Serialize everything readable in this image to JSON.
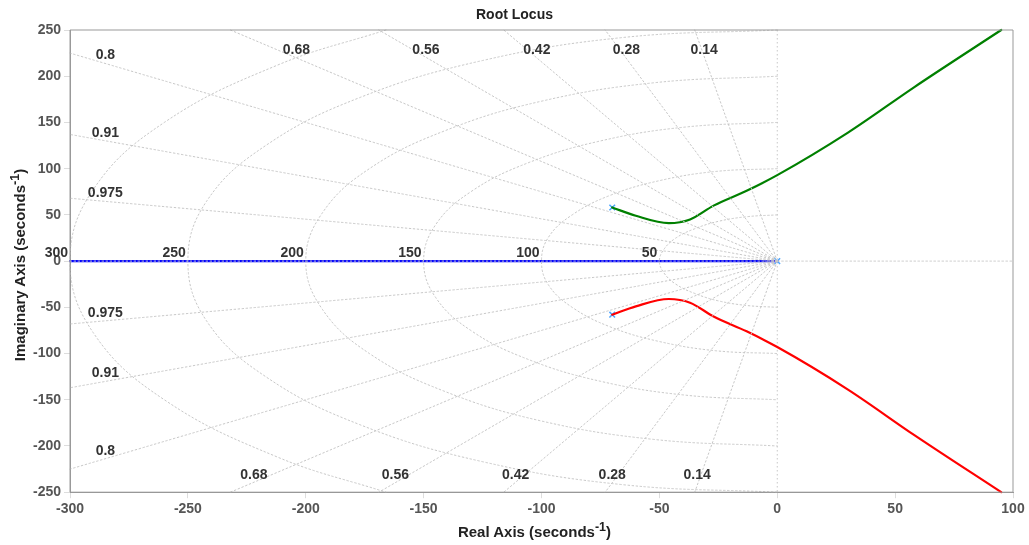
{
  "chart_data": {
    "type": "line",
    "title": "Root Locus",
    "xlabel": "Real Axis (seconds$^{-1}$)",
    "ylabel": "Imaginary Axis (seconds$^{-1}$)",
    "xlim": [
      -300,
      100
    ],
    "xticks": [
      -300,
      -250,
      -200,
      -150,
      -100,
      -50,
      0,
      50,
      100
    ],
    "ylim": [
      -250,
      250
    ],
    "yticks": [
      -250,
      -200,
      -150,
      -100,
      -50,
      0,
      50,
      100,
      150,
      200,
      250
    ],
    "marker": "none",
    "line_style": "solid",
    "ref_lines": [
      {
        "axis": "x",
        "value": 0,
        "color": "#c8c8c8",
        "line_style": "dotted"
      }
    ],
    "series": [
      {
        "color": "#c8c8c8",
        "line_style": "dotted",
        "x": [
          -300,
          100
        ],
        "values": [
          0,
          0
        ]
      },
      {
        "color": "#c8c8c8",
        "line_style": "dotted",
        "x": [
          0,
          -35
        ],
        "values": [
          0,
          250
        ]
      },
      {
        "color": "#c8c8c8",
        "line_style": "dotted",
        "x": [
          0,
          -73
        ],
        "values": [
          0,
          250
        ]
      },
      {
        "color": "#c8c8c8",
        "line_style": "dotted",
        "x": [
          0,
          -116
        ],
        "values": [
          0,
          250
        ]
      },
      {
        "color": "#c8c8c8",
        "line_style": "dotted",
        "x": [
          0,
          -169
        ],
        "values": [
          0,
          250
        ]
      },
      {
        "color": "#c8c8c8",
        "line_style": "dotted",
        "x": [
          0,
          -232
        ],
        "values": [
          0,
          250
        ]
      },
      {
        "color": "#c8c8c8",
        "line_style": "dotted",
        "x": [
          0,
          -300
        ],
        "values": [
          0,
          225
        ]
      },
      {
        "color": "#c8c8c8",
        "line_style": "dotted",
        "x": [
          0,
          -300
        ],
        "values": [
          0,
          137
        ]
      },
      {
        "color": "#c8c8c8",
        "line_style": "dotted",
        "x": [
          0,
          -300
        ],
        "values": [
          0,
          68
        ]
      },
      {
        "color": "#c8c8c8",
        "line_style": "dotted",
        "x": [
          0,
          -35
        ],
        "values": [
          0,
          -250
        ]
      },
      {
        "color": "#c8c8c8",
        "line_style": "dotted",
        "x": [
          0,
          -73
        ],
        "values": [
          0,
          -250
        ]
      },
      {
        "color": "#c8c8c8",
        "line_style": "dotted",
        "x": [
          0,
          -116
        ],
        "values": [
          0,
          -250
        ]
      },
      {
        "color": "#c8c8c8",
        "line_style": "dotted",
        "x": [
          0,
          -169
        ],
        "values": [
          0,
          -250
        ]
      },
      {
        "color": "#c8c8c8",
        "line_style": "dotted",
        "x": [
          0,
          -232
        ],
        "values": [
          0,
          -250
        ]
      },
      {
        "color": "#c8c8c8",
        "line_style": "dotted",
        "x": [
          0,
          -300
        ],
        "values": [
          0,
          -225
        ]
      },
      {
        "color": "#c8c8c8",
        "line_style": "dotted",
        "x": [
          0,
          -300
        ],
        "values": [
          0,
          -137
        ]
      },
      {
        "color": "#c8c8c8",
        "line_style": "dotted",
        "x": [
          0,
          -300
        ],
        "values": [
          0,
          -68
        ]
      },
      {
        "color": "#c8c8c8",
        "line_style": "dotted",
        "x": [
          0,
          -13,
          -25,
          -35,
          -43,
          -48,
          -50,
          -48,
          -43,
          -35,
          -25,
          -13,
          0
        ],
        "values": [
          50,
          48,
          43,
          35,
          25,
          13,
          0,
          -13,
          -25,
          -35,
          -43,
          -48,
          -50
        ]
      },
      {
        "color": "#c8c8c8",
        "line_style": "dotted",
        "x": [
          0,
          -26,
          -50,
          -71,
          -87,
          -97,
          -100,
          -97,
          -87,
          -71,
          -50,
          -26,
          0
        ],
        "values": [
          100,
          97,
          87,
          71,
          50,
          26,
          0,
          -26,
          -50,
          -71,
          -87,
          -97,
          -100
        ]
      },
      {
        "color": "#c8c8c8",
        "line_style": "dotted",
        "x": [
          0,
          -39,
          -75,
          -106,
          -130,
          -145,
          -150,
          -145,
          -130,
          -106,
          -75,
          -39,
          0
        ],
        "values": [
          150,
          145,
          130,
          106,
          75,
          39,
          0,
          -39,
          -75,
          -106,
          -130,
          -145,
          -150
        ]
      },
      {
        "color": "#c8c8c8",
        "line_style": "dotted",
        "x": [
          0,
          -52,
          -100,
          -141,
          -173,
          -193,
          -200,
          -193,
          -173,
          -141,
          -100,
          -52,
          0
        ],
        "values": [
          200,
          193,
          173,
          141,
          100,
          52,
          0,
          -52,
          -100,
          -141,
          -173,
          -193,
          -200
        ]
      },
      {
        "color": "#c8c8c8",
        "line_style": "dotted",
        "x": [
          0,
          -65,
          -125,
          -177,
          -217,
          -242,
          -250,
          -242,
          -217,
          -177,
          -125,
          -65,
          0
        ],
        "values": [
          250,
          242,
          217,
          177,
          125,
          65,
          0,
          -65,
          -125,
          -177,
          -217,
          -242,
          -250
        ]
      },
      {
        "color": "#c8c8c8",
        "line_style": "dotted",
        "x": [
          -166,
          -212,
          -260,
          -290,
          -300,
          -290,
          -260,
          -212,
          -166
        ],
        "values": [
          250,
          212,
          150,
          78,
          0,
          -78,
          -150,
          -212,
          -250
        ]
      },
      {
        "color": "#0000ff",
        "x": [
          0,
          -300
        ],
        "values": [
          0,
          0
        ]
      },
      {
        "color": "#008000",
        "x": [
          -70,
          -60,
          -46,
          -37,
          -27,
          -13,
          0,
          30,
          58,
          95
        ],
        "values": [
          58,
          49,
          41,
          45,
          60,
          76,
          93,
          139,
          188,
          250
        ]
      },
      {
        "color": "#ff0000",
        "x": [
          -70,
          -60,
          -46,
          -37,
          -27,
          -13,
          0,
          30,
          58,
          95
        ],
        "values": [
          -58,
          -49,
          -41,
          -45,
          -60,
          -76,
          -93,
          -139,
          -188,
          -250
        ]
      },
      {
        "type": "scatter",
        "marker": "cross",
        "color": "#4da6ff",
        "x": [
          -70,
          -70,
          0
        ],
        "values": [
          58,
          -58,
          0
        ]
      }
    ],
    "annotations": [
      {
        "text": "0.68",
        "x": -204,
        "y": 220
      },
      {
        "text": "0.56",
        "x": -149,
        "y": 220
      },
      {
        "text": "0.42",
        "x": -102,
        "y": 220
      },
      {
        "text": "0.28",
        "x": -64,
        "y": 220
      },
      {
        "text": "0.14",
        "x": -31,
        "y": 220
      },
      {
        "text": "0.8",
        "x": -285,
        "y": 214
      },
      {
        "text": "0.91",
        "x": -285,
        "y": 130
      },
      {
        "text": "0.975",
        "x": -285,
        "y": 65
      },
      {
        "text": "0.975",
        "x": -285,
        "y": -65
      },
      {
        "text": "0.91",
        "x": -285,
        "y": -130
      },
      {
        "text": "0.8",
        "x": -285,
        "y": -214
      },
      {
        "text": "0.68",
        "x": -222,
        "y": -240
      },
      {
        "text": "0.56",
        "x": -162,
        "y": -240
      },
      {
        "text": "0.42",
        "x": -111,
        "y": -240
      },
      {
        "text": "0.28",
        "x": -70,
        "y": -240
      },
      {
        "text": "0.14",
        "x": -34,
        "y": -240
      },
      {
        "text": "300",
        "x": -300,
        "y": 0
      },
      {
        "text": "250",
        "x": -250,
        "y": 0
      },
      {
        "text": "200",
        "x": -200,
        "y": 0
      },
      {
        "text": "150",
        "x": -150,
        "y": 0
      },
      {
        "text": "100",
        "x": -100,
        "y": 0
      },
      {
        "text": "50",
        "x": -50,
        "y": 0
      }
    ]
  }
}
